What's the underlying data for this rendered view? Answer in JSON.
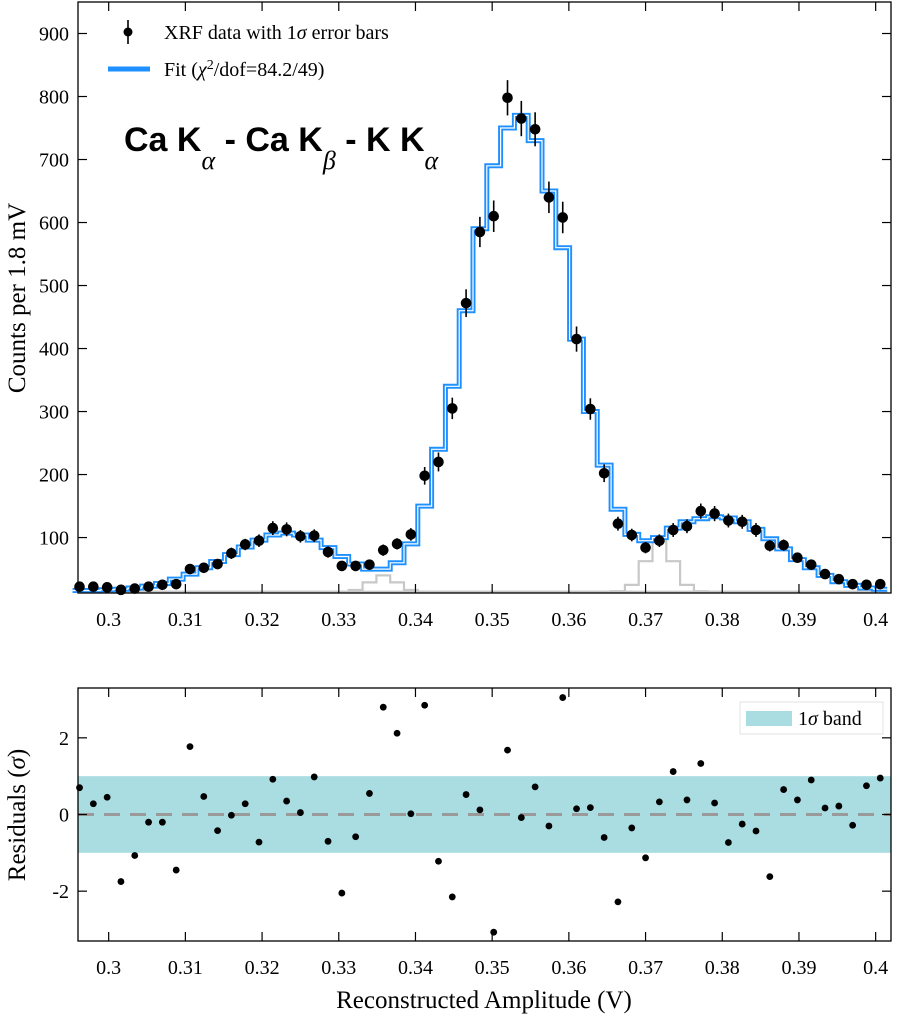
{
  "chart_data": [
    {
      "type": "line",
      "subtype": "step-histogram-with-errorbars",
      "ylabel": "Counts per 1.8 mV",
      "xlim": [
        0.296,
        0.402
      ],
      "ylim": [
        12,
        950
      ],
      "xticks": [
        0.3,
        0.31,
        0.32,
        0.33,
        0.34,
        0.35,
        0.36,
        0.37,
        0.38,
        0.39,
        0.4
      ],
      "xtick_labels": [
        "0.3",
        "0.31",
        "0.32",
        "0.33",
        "0.34",
        "0.35",
        "0.36",
        "0.37",
        "0.38",
        "0.39",
        "0.4"
      ],
      "yticks": [
        100,
        200,
        300,
        400,
        500,
        600,
        700,
        800,
        900
      ],
      "ytick_labels": [
        "100",
        "200",
        "300",
        "400",
        "500",
        "600",
        "700",
        "800",
        "900"
      ],
      "legend": {
        "position": "top-left",
        "entries": [
          {
            "pre": "XRF data with 1",
            "sym": "σ",
            "post": " error bars"
          },
          {
            "pre": "Fit (",
            "sym": "χ",
            "sup": "2",
            "post": "/dof=84.2/49)"
          }
        ]
      },
      "annotation": {
        "p1": "Ca K",
        "s1": "α",
        "p2": " - Ca K",
        "s2": "β",
        "p3": " - K K",
        "s3": "α"
      },
      "colors": {
        "fit": "#1e90ff",
        "component": "#c8c8c8",
        "data": "#000000"
      },
      "bin_width": 0.0018,
      "data_x": [
        0.2962,
        0.298,
        0.2998,
        0.3016,
        0.3034,
        0.3052,
        0.307,
        0.3088,
        0.3106,
        0.3124,
        0.3142,
        0.316,
        0.3178,
        0.3196,
        0.3214,
        0.3232,
        0.325,
        0.3268,
        0.3286,
        0.3304,
        0.3322,
        0.334,
        0.3358,
        0.3376,
        0.3394,
        0.3412,
        0.343,
        0.3448,
        0.3466,
        0.3484,
        0.3502,
        0.352,
        0.3538,
        0.3556,
        0.3574,
        0.3592,
        0.361,
        0.3628,
        0.3646,
        0.3664,
        0.3682,
        0.37,
        0.3718,
        0.3736,
        0.3754,
        0.3772,
        0.379,
        0.3808,
        0.3826,
        0.3844,
        0.3862,
        0.388,
        0.3898,
        0.3916,
        0.3934,
        0.3952,
        0.397,
        0.3988,
        0.4006
      ],
      "data_y": [
        22,
        22,
        21,
        17,
        19,
        22,
        25,
        26,
        50,
        52,
        58,
        75,
        89,
        95,
        115,
        113,
        102,
        103,
        77,
        55,
        55,
        57,
        80,
        90,
        105,
        198,
        220,
        305,
        472,
        585,
        610,
        798,
        765,
        748,
        640,
        608,
        415,
        304,
        202,
        122,
        104,
        84,
        95,
        112,
        118,
        142,
        138,
        127,
        125,
        112,
        87,
        88,
        68,
        57,
        42,
        34,
        26,
        25,
        26
      ],
      "data_err": [
        5,
        5,
        5,
        4,
        4,
        5,
        5,
        5,
        7,
        7,
        8,
        9,
        9,
        10,
        11,
        11,
        10,
        10,
        9,
        7,
        7,
        8,
        9,
        9,
        10,
        14,
        15,
        17,
        22,
        24,
        25,
        28,
        28,
        27,
        25,
        25,
        20,
        17,
        14,
        11,
        10,
        9,
        10,
        11,
        11,
        12,
        12,
        11,
        11,
        11,
        9,
        9,
        8,
        8,
        7,
        6,
        5,
        5,
        5
      ],
      "fit_y": [
        16,
        16,
        17,
        18,
        20,
        23,
        27,
        34,
        42,
        52,
        62,
        73,
        85,
        96,
        104,
        107,
        104,
        96,
        84,
        70,
        58,
        50,
        50,
        60,
        90,
        150,
        240,
        340,
        460,
        590,
        690,
        750,
        770,
        730,
        650,
        560,
        415,
        300,
        215,
        145,
        105,
        95,
        100,
        115,
        125,
        130,
        133,
        131,
        125,
        113,
        98,
        82,
        65,
        52,
        40,
        30,
        24,
        20,
        18
      ],
      "components": [
        {
          "name": "K Kα",
          "amp": 26,
          "mu": 0.3358,
          "sigma": 0.0017
        },
        {
          "name": "Ca Kβ",
          "amp": 80,
          "mu": 0.3718,
          "sigma": 0.0018
        }
      ]
    },
    {
      "type": "scatter",
      "xlabel": "Reconstructed Amplitude (V)",
      "ylabel": "Residuals (σ)",
      "ylabel_parts": {
        "pre": "Residuals (",
        "sym": "σ",
        "post": ")"
      },
      "xlim": [
        0.296,
        0.402
      ],
      "ylim": [
        -3.3,
        3.3
      ],
      "xticks": [
        0.3,
        0.31,
        0.32,
        0.33,
        0.34,
        0.35,
        0.36,
        0.37,
        0.38,
        0.39,
        0.4
      ],
      "xtick_labels": [
        "0.3",
        "0.31",
        "0.32",
        "0.33",
        "0.34",
        "0.35",
        "0.36",
        "0.37",
        "0.38",
        "0.39",
        "0.4"
      ],
      "yticks": [
        -2,
        0,
        2
      ],
      "ytick_labels": [
        "-2",
        "0",
        "2"
      ],
      "band": [
        -1,
        1
      ],
      "band_color": "#a9dde2",
      "zero_line_color": "#9a9a9a",
      "legend": {
        "position": "top-right",
        "entry": {
          "pre": "1",
          "sym": "σ",
          "post": " band"
        }
      },
      "x": [
        0.2962,
        0.298,
        0.2998,
        0.3016,
        0.3034,
        0.3052,
        0.307,
        0.3088,
        0.3106,
        0.3124,
        0.3142,
        0.316,
        0.3178,
        0.3196,
        0.3214,
        0.3232,
        0.325,
        0.3268,
        0.3286,
        0.3304,
        0.3322,
        0.334,
        0.3358,
        0.3376,
        0.3394,
        0.3412,
        0.343,
        0.3448,
        0.3466,
        0.3484,
        0.3502,
        0.352,
        0.3538,
        0.3556,
        0.3574,
        0.3592,
        0.361,
        0.3628,
        0.3646,
        0.3664,
        0.3682,
        0.37,
        0.3718,
        0.3736,
        0.3754,
        0.3772,
        0.379,
        0.3808,
        0.3826,
        0.3844,
        0.3862,
        0.388,
        0.3898,
        0.3916,
        0.3934,
        0.3952,
        0.397,
        0.3988,
        0.4006
      ],
      "y": [
        0.7,
        0.28,
        0.45,
        -1.75,
        -1.07,
        -0.2,
        -0.2,
        -1.45,
        1.77,
        0.47,
        -0.42,
        -0.02,
        0.28,
        -0.72,
        0.92,
        0.35,
        0.05,
        0.98,
        -0.7,
        -2.05,
        -0.58,
        0.55,
        2.8,
        2.12,
        0.02,
        2.85,
        -1.22,
        -2.15,
        0.52,
        0.12,
        -3.07,
        1.68,
        -0.08,
        0.72,
        -0.3,
        3.05,
        0.15,
        0.18,
        -0.6,
        -2.28,
        -0.35,
        -1.13,
        0.33,
        1.12,
        0.38,
        1.33,
        0.3,
        -0.73,
        -0.25,
        -0.43,
        -1.62,
        0.65,
        0.38,
        0.9,
        0.17,
        0.22,
        -0.28,
        0.75,
        0.95
      ]
    }
  ]
}
